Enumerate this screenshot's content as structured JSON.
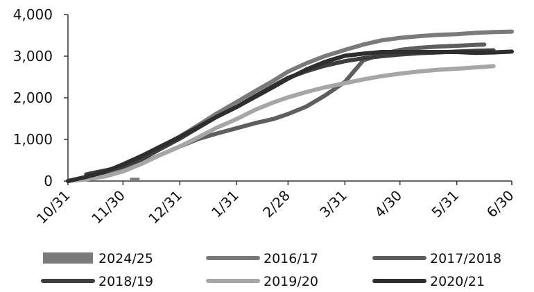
{
  "chart_data": {
    "type": "line",
    "title": "",
    "xlabel": "",
    "ylabel": "",
    "ylim": [
      0,
      4000
    ],
    "y_ticks": [
      0,
      1000,
      2000,
      3000,
      4000
    ],
    "y_tick_labels": [
      "0",
      "1,000",
      "2,000",
      "3,000",
      "4,000"
    ],
    "x_ticks": [
      "10/31",
      "11/30",
      "12/31",
      "1/31",
      "2/28",
      "3/31",
      "4/30",
      "5/31",
      "6/30"
    ],
    "grid": false,
    "legend_position": "bottom",
    "series": [
      {
        "name": "2024/25",
        "color": "#7a7a7a",
        "style": "bar",
        "x": [
          "11/30"
        ],
        "values": [
          80
        ]
      },
      {
        "name": "2016/17",
        "color": "#7a7a7a",
        "x": [
          "10/31",
          "11/10",
          "11/20",
          "11/30",
          "12/10",
          "12/20",
          "12/31",
          "1/10",
          "1/20",
          "1/31",
          "2/10",
          "2/20",
          "2/28",
          "3/10",
          "3/20",
          "3/31",
          "4/10",
          "4/20",
          "4/30",
          "5/10",
          "5/20",
          "5/31",
          "6/10",
          "6/20",
          "6/30"
        ],
        "values": [
          0,
          80,
          200,
          360,
          560,
          800,
          1070,
          1340,
          1620,
          1900,
          2160,
          2410,
          2630,
          2830,
          3000,
          3150,
          3280,
          3380,
          3440,
          3480,
          3510,
          3530,
          3560,
          3580,
          3590
        ]
      },
      {
        "name": "2017/2018",
        "color": "#5e5e5e",
        "x": [
          "10/31",
          "11/10",
          "11/20",
          "11/30",
          "12/10",
          "12/20",
          "12/31",
          "1/10",
          "1/20",
          "1/31",
          "2/10",
          "2/20",
          "2/28",
          "3/10",
          "3/20",
          "3/31",
          "4/10",
          "4/20",
          "4/30",
          "5/10",
          "5/20",
          "5/31",
          "6/10",
          "6/15"
        ],
        "values": [
          0,
          60,
          150,
          280,
          430,
          620,
          830,
          1010,
          1140,
          1270,
          1390,
          1490,
          1610,
          1790,
          2050,
          2380,
          2900,
          3050,
          3150,
          3200,
          3230,
          3250,
          3270,
          3280
        ]
      },
      {
        "name": "2018/19",
        "color": "#3e3e3e",
        "x": [
          "11/10",
          "11/20",
          "11/30",
          "12/10",
          "12/20",
          "12/31",
          "1/10",
          "1/20",
          "1/31",
          "2/10",
          "2/20",
          "2/28",
          "3/10",
          "3/20",
          "3/31",
          "4/10",
          "4/20",
          "4/30",
          "5/10",
          "5/20",
          "5/31",
          "6/10",
          "6/20"
        ],
        "values": [
          160,
          250,
          350,
          520,
          760,
          1020,
          1280,
          1540,
          1780,
          2040,
          2290,
          2480,
          2640,
          2770,
          2880,
          2950,
          3000,
          3040,
          3070,
          3090,
          3110,
          3130,
          3140
        ]
      },
      {
        "name": "2019/20",
        "color": "#a6a6a6",
        "x": [
          "10/31",
          "11/10",
          "11/20",
          "11/30",
          "12/10",
          "12/20",
          "12/31",
          "1/10",
          "1/20",
          "1/31",
          "2/10",
          "2/20",
          "2/28",
          "3/10",
          "3/20",
          "3/31",
          "4/10",
          "4/20",
          "4/30",
          "5/10",
          "5/20",
          "5/31",
          "6/10",
          "6/20"
        ],
        "values": [
          0,
          40,
          110,
          230,
          410,
          620,
          830,
          1050,
          1280,
          1490,
          1710,
          1890,
          2010,
          2140,
          2250,
          2350,
          2440,
          2520,
          2580,
          2630,
          2670,
          2700,
          2730,
          2760
        ]
      },
      {
        "name": "2020/21",
        "color": "#2e2e2e",
        "x": [
          "10/31",
          "11/10",
          "11/20",
          "11/30",
          "12/10",
          "12/20",
          "12/31",
          "1/10",
          "1/20",
          "1/31",
          "2/10",
          "2/20",
          "2/28",
          "3/10",
          "3/20",
          "3/31",
          "4/10",
          "4/20",
          "4/30",
          "5/10",
          "5/20",
          "5/31",
          "6/10",
          "6/20",
          "6/30"
        ],
        "values": [
          0,
          100,
          220,
          400,
          600,
          820,
          1060,
          1300,
          1540,
          1780,
          2020,
          2260,
          2460,
          2680,
          2860,
          3010,
          3060,
          3100,
          3100,
          3100,
          3100,
          3100,
          3080,
          3090,
          3110
        ]
      }
    ]
  }
}
